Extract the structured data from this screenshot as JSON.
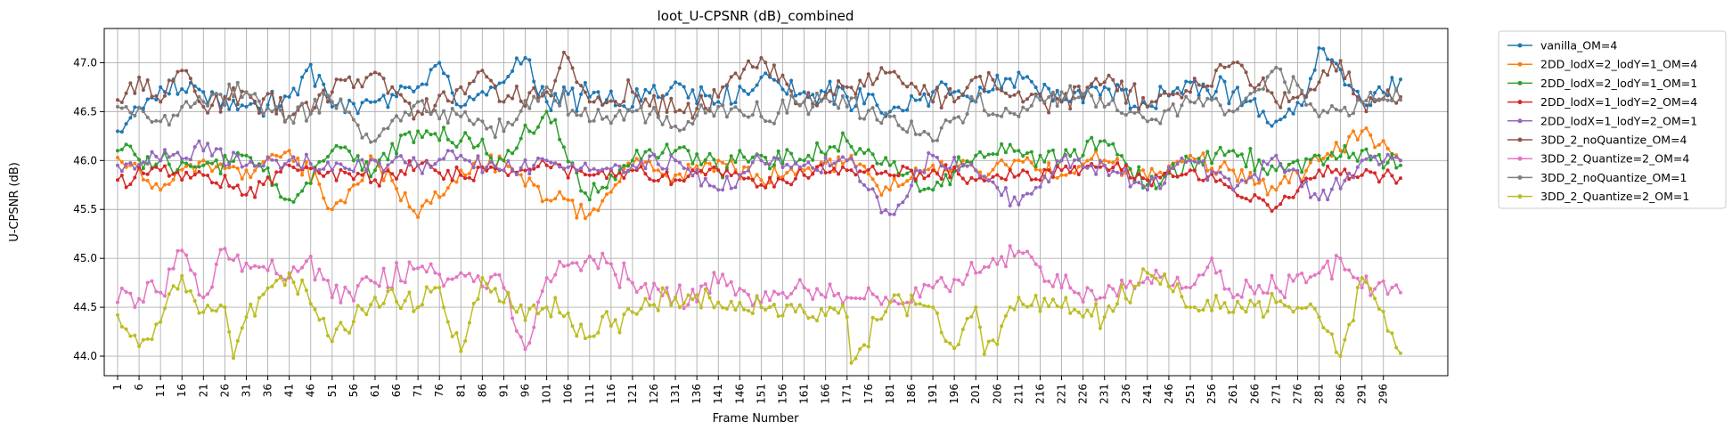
{
  "chart_data": {
    "type": "line",
    "title": "loot_U-CPSNR (dB)_combined",
    "xlabel": "Frame Number",
    "ylabel": "U-CPSNR (dB)",
    "xlim": [
      1,
      300
    ],
    "ylim": [
      43.8,
      47.35
    ],
    "x_ticks": [
      "1",
      "6",
      "11",
      "16",
      "21",
      "26",
      "31",
      "36",
      "41",
      "46",
      "51",
      "56",
      "61",
      "66",
      "71",
      "76",
      "81",
      "86",
      "91",
      "96",
      "101",
      "106",
      "111",
      "116",
      "121",
      "126",
      "131",
      "136",
      "141",
      "146",
      "151",
      "156",
      "161",
      "166",
      "171",
      "176",
      "181",
      "186",
      "191",
      "196",
      "201",
      "206",
      "211",
      "216",
      "221",
      "226",
      "231",
      "236",
      "241",
      "246",
      "251",
      "256",
      "261",
      "266",
      "271",
      "276",
      "281",
      "286",
      "291",
      "296"
    ],
    "y_ticks": [
      "44.0",
      "44.5",
      "45.0",
      "45.5",
      "46.0",
      "46.5",
      "47.0"
    ],
    "grid": true,
    "legend_position": "outside-right-top",
    "series": [
      {
        "name": "vanilla_OM=4",
        "color": "#1f77b4",
        "x": [
          1,
          11,
          21,
          31,
          41,
          46,
          51,
          61,
          71,
          76,
          81,
          91,
          96,
          101,
          111,
          121,
          131,
          141,
          151,
          161,
          171,
          181,
          191,
          201,
          211,
          221,
          231,
          241,
          251,
          261,
          271,
          278,
          281,
          291,
          300
        ],
        "values": [
          46.3,
          46.75,
          46.7,
          46.55,
          46.65,
          46.98,
          46.55,
          46.6,
          46.75,
          47.0,
          46.55,
          46.8,
          47.05,
          46.6,
          46.65,
          46.55,
          46.8,
          46.6,
          46.85,
          46.7,
          46.65,
          46.5,
          46.7,
          46.6,
          46.9,
          46.6,
          46.75,
          46.55,
          46.8,
          46.7,
          46.4,
          46.65,
          47.15,
          46.6,
          46.83
        ]
      },
      {
        "name": "2DD_lodX=2_lodY=1_OM=4",
        "color": "#ff7f0e",
        "x": [
          1,
          11,
          21,
          31,
          41,
          51,
          61,
          71,
          81,
          91,
          101,
          111,
          121,
          131,
          141,
          151,
          161,
          171,
          181,
          191,
          201,
          211,
          221,
          231,
          241,
          251,
          261,
          271,
          281,
          291,
          300
        ],
        "values": [
          46.03,
          45.7,
          46.0,
          45.9,
          46.1,
          45.5,
          46.0,
          45.42,
          45.9,
          46.0,
          45.6,
          45.45,
          45.95,
          45.85,
          46.0,
          45.8,
          45.9,
          46.0,
          45.7,
          45.95,
          45.9,
          46.0,
          45.85,
          46.0,
          45.8,
          46.05,
          45.9,
          45.7,
          46.0,
          46.3,
          46.0
        ]
      },
      {
        "name": "2DD_lodX=2_lodY=1_OM=1",
        "color": "#2ca02c",
        "x": [
          1,
          11,
          21,
          31,
          41,
          51,
          61,
          71,
          81,
          91,
          101,
          111,
          121,
          131,
          141,
          151,
          161,
          171,
          181,
          191,
          201,
          211,
          221,
          231,
          241,
          251,
          261,
          271,
          281,
          291,
          300
        ],
        "values": [
          46.1,
          46.0,
          45.95,
          46.05,
          45.6,
          46.1,
          45.9,
          46.3,
          46.2,
          46.0,
          46.5,
          45.6,
          46.0,
          46.1,
          45.9,
          46.05,
          46.0,
          46.2,
          45.95,
          45.7,
          46.05,
          46.1,
          46.0,
          46.2,
          45.75,
          46.0,
          46.1,
          45.9,
          46.05,
          46.1,
          45.95
        ]
      },
      {
        "name": "2DD_lodX=1_lodY=2_OM=4",
        "color": "#d62728",
        "x": [
          1,
          11,
          21,
          31,
          41,
          51,
          61,
          71,
          81,
          91,
          101,
          111,
          121,
          131,
          141,
          151,
          161,
          171,
          181,
          191,
          201,
          211,
          221,
          231,
          241,
          251,
          261,
          271,
          281,
          291,
          300
        ],
        "values": [
          45.8,
          45.9,
          45.85,
          45.65,
          45.95,
          45.9,
          45.8,
          45.95,
          45.85,
          45.9,
          45.95,
          45.85,
          45.9,
          45.8,
          45.9,
          45.75,
          45.85,
          45.9,
          45.85,
          45.9,
          45.8,
          45.85,
          45.9,
          45.95,
          45.8,
          45.9,
          45.7,
          45.52,
          45.9,
          45.85,
          45.82
        ]
      },
      {
        "name": "2DD_lodX=1_lodY=2_OM=1",
        "color": "#9467bd",
        "x": [
          1,
          11,
          21,
          31,
          41,
          51,
          61,
          71,
          81,
          91,
          101,
          111,
          121,
          131,
          141,
          151,
          161,
          171,
          181,
          191,
          201,
          211,
          221,
          231,
          241,
          251,
          261,
          271,
          281,
          291,
          300
        ],
        "values": [
          45.95,
          46.0,
          46.1,
          45.95,
          46.0,
          45.9,
          46.0,
          45.95,
          46.05,
          45.9,
          46.0,
          45.9,
          45.95,
          46.0,
          45.7,
          46.0,
          45.95,
          46.0,
          45.45,
          46.05,
          45.9,
          45.55,
          46.0,
          45.95,
          45.7,
          46.0,
          45.7,
          46.05,
          45.6,
          46.0,
          46.0
        ]
      },
      {
        "name": "3DD_2_noQuantize_OM=4",
        "color": "#8c564b",
        "x": [
          1,
          6,
          11,
          16,
          21,
          31,
          41,
          51,
          61,
          71,
          81,
          86,
          91,
          101,
          106,
          111,
          121,
          131,
          141,
          151,
          161,
          171,
          181,
          191,
          201,
          211,
          221,
          231,
          241,
          251,
          261,
          271,
          281,
          286,
          291,
          300
        ],
        "values": [
          46.62,
          46.85,
          46.6,
          46.92,
          46.55,
          46.7,
          46.45,
          46.7,
          46.9,
          46.5,
          46.75,
          46.92,
          46.6,
          46.7,
          47.05,
          46.6,
          46.7,
          46.5,
          46.65,
          47.05,
          46.6,
          46.75,
          46.9,
          46.6,
          46.85,
          46.7,
          46.6,
          46.8,
          46.55,
          46.7,
          47.0,
          46.6,
          46.8,
          47.02,
          46.6,
          46.65
        ]
      },
      {
        "name": "3DD_2_Quantize=2_OM=4",
        "color": "#e377c2",
        "x": [
          1,
          11,
          16,
          21,
          26,
          31,
          41,
          46,
          51,
          61,
          71,
          81,
          91,
          96,
          101,
          111,
          121,
          131,
          141,
          151,
          161,
          171,
          181,
          191,
          201,
          211,
          221,
          231,
          241,
          251,
          256,
          261,
          271,
          281,
          286,
          291,
          300
        ],
        "values": [
          44.55,
          44.65,
          45.08,
          44.6,
          45.1,
          44.95,
          44.8,
          45.02,
          44.6,
          44.75,
          44.9,
          44.85,
          44.7,
          44.07,
          44.8,
          45.02,
          44.75,
          44.6,
          44.75,
          44.55,
          44.7,
          44.6,
          44.55,
          44.7,
          44.85,
          45.07,
          44.7,
          44.6,
          44.8,
          44.7,
          45.0,
          44.6,
          44.7,
          44.85,
          45.0,
          44.7,
          44.65
        ]
      },
      {
        "name": "3DD_2_noQuantize_OM=1",
        "color": "#7f7f7f",
        "x": [
          1,
          11,
          21,
          31,
          41,
          51,
          61,
          71,
          81,
          91,
          101,
          111,
          121,
          131,
          141,
          151,
          161,
          171,
          181,
          191,
          201,
          211,
          221,
          231,
          241,
          251,
          261,
          271,
          281,
          291,
          300
        ],
        "values": [
          46.55,
          46.4,
          46.6,
          46.7,
          46.45,
          46.6,
          46.2,
          46.6,
          46.45,
          46.3,
          46.75,
          46.4,
          46.5,
          46.35,
          46.55,
          46.45,
          46.6,
          46.55,
          46.45,
          46.2,
          46.6,
          46.45,
          46.7,
          46.55,
          46.4,
          46.6,
          46.5,
          46.95,
          46.45,
          46.6,
          46.62
        ]
      },
      {
        "name": "3DD_2_Quantize=2_OM=1",
        "color": "#bcbd22",
        "x": [
          1,
          6,
          11,
          16,
          21,
          26,
          28,
          31,
          41,
          51,
          61,
          71,
          76,
          81,
          86,
          91,
          101,
          111,
          121,
          131,
          141,
          151,
          161,
          171,
          172,
          181,
          191,
          196,
          201,
          203,
          211,
          221,
          231,
          241,
          251,
          261,
          271,
          281,
          286,
          291,
          300
        ],
        "values": [
          44.42,
          44.1,
          44.35,
          44.82,
          44.45,
          44.5,
          43.98,
          44.4,
          44.85,
          44.15,
          44.6,
          44.5,
          44.7,
          44.05,
          44.8,
          44.55,
          44.5,
          44.2,
          44.45,
          44.6,
          44.55,
          44.5,
          44.45,
          44.4,
          43.93,
          44.55,
          44.5,
          44.08,
          44.5,
          44.02,
          44.6,
          44.5,
          44.4,
          44.85,
          44.5,
          44.45,
          44.55,
          44.4,
          44.0,
          44.8,
          44.03
        ]
      }
    ]
  }
}
